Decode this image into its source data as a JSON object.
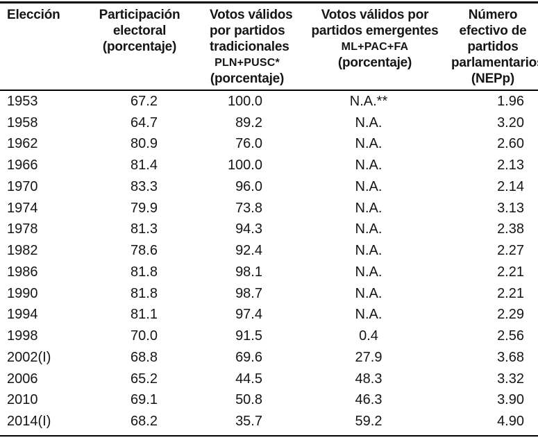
{
  "table": {
    "columns": [
      {
        "id": "eleccion",
        "label_lines": [
          "Elección"
        ]
      },
      {
        "id": "participacion",
        "label_lines": [
          "Participación",
          "electoral",
          "(porcentaje)"
        ]
      },
      {
        "id": "tradicionales",
        "label_lines": [
          "Votos válidos",
          "por partidos",
          "tradicionales"
        ],
        "sub_label": "PLN+PUSC*",
        "label_tail": "(porcentaje)"
      },
      {
        "id": "emergentes",
        "label_lines": [
          "Votos válidos por",
          "partidos emergentes"
        ],
        "sub_label": "ML+PAC+FA",
        "label_tail": "(porcentaje)"
      },
      {
        "id": "nepp",
        "label_lines": [
          "Número",
          "efectivo de",
          "partidos",
          "parlamentarios",
          "(NEPp)"
        ]
      }
    ],
    "rows": [
      [
        "1953",
        "67.2",
        "100.0",
        "N.A.**",
        "1.96"
      ],
      [
        "1958",
        "64.7",
        "89.2",
        "N.A.",
        "3.20"
      ],
      [
        "1962",
        "80.9",
        "76.0",
        "N.A.",
        "2.60"
      ],
      [
        "1966",
        "81.4",
        "100.0",
        "N.A.",
        "2.13"
      ],
      [
        "1970",
        "83.3",
        "96.0",
        "N.A.",
        "2.14"
      ],
      [
        "1974",
        "79.9",
        "73.8",
        "N.A.",
        "3.13"
      ],
      [
        "1978",
        "81.3",
        "94.3",
        "N.A.",
        "2.38"
      ],
      [
        "1982",
        "78.6",
        "92.4",
        "N.A.",
        "2.27"
      ],
      [
        "1986",
        "81.8",
        "98.1",
        "N.A.",
        "2.21"
      ],
      [
        "1990",
        "81.8",
        "98.7",
        "N.A.",
        "2.21"
      ],
      [
        "1994",
        "81.1",
        "97.4",
        "N.A.",
        "2.29"
      ],
      [
        "1998",
        "70.0",
        "91.5",
        "0.4",
        "2.56"
      ],
      [
        "2002(I)",
        "68.8",
        "69.6",
        "27.9",
        "3.68"
      ],
      [
        "2006",
        "65.2",
        "44.5",
        "48.3",
        "3.32"
      ],
      [
        "2010",
        "69.1",
        "50.8",
        "46.3",
        "3.90"
      ],
      [
        "2014(I)",
        "68.2",
        "35.7",
        "59.2",
        "4.90"
      ]
    ]
  },
  "colors": {
    "text": "#151515",
    "rule": "#000000",
    "background": "#ffffff"
  }
}
